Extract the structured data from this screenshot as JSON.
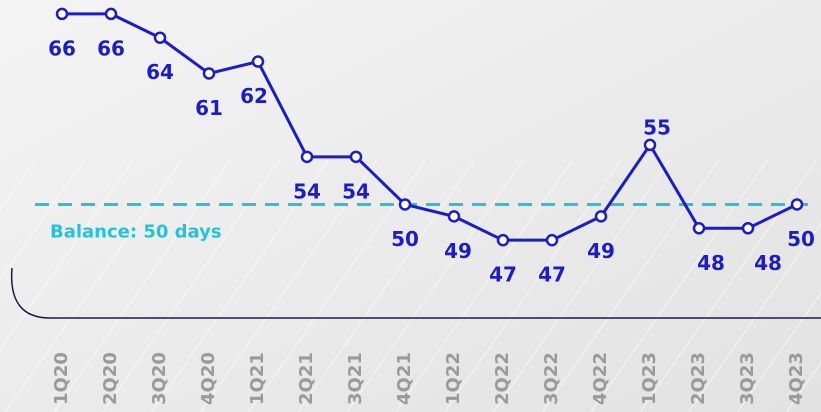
{
  "chart_data": {
    "type": "line",
    "categories": [
      "1Q20",
      "2Q20",
      "3Q20",
      "4Q20",
      "1Q21",
      "2Q21",
      "3Q21",
      "4Q21",
      "1Q22",
      "2Q22",
      "3Q22",
      "4Q22",
      "1Q23",
      "2Q23",
      "3Q23",
      "4Q23"
    ],
    "values": [
      66,
      66,
      64,
      61,
      62,
      54,
      54,
      50,
      49,
      47,
      47,
      49,
      55,
      48,
      48,
      50
    ],
    "color": "#1c1cc8",
    "ylim": [
      45,
      67
    ],
    "reference_line": {
      "value": 50,
      "label": "Balance: 50 days",
      "color": "#22c4da"
    }
  }
}
